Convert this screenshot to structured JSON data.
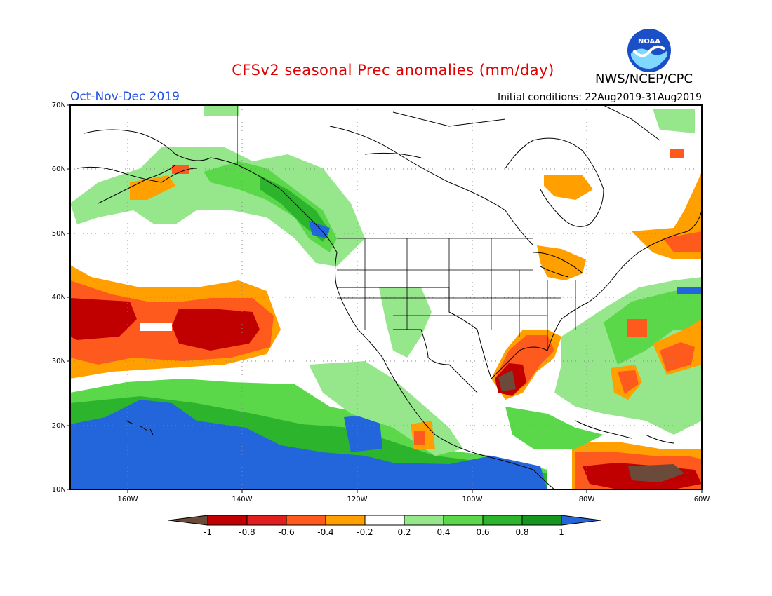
{
  "header": {
    "title": "CFSv2 seasonal Prec anomalies (mm/day)",
    "season": "Oct-Nov-Dec 2019",
    "initial_conditions": "Initial conditions: 22Aug2019-31Aug2019",
    "agency": "NWS/NCEP/CPC",
    "logo_text": "NOAA"
  },
  "map": {
    "lat_labels": [
      "70N",
      "60N",
      "50N",
      "40N",
      "30N",
      "20N",
      "10N"
    ],
    "lon_labels": [
      "160W",
      "140W",
      "120W",
      "100W",
      "80W",
      "60W"
    ]
  },
  "legend": {
    "labels": [
      "-1",
      "-0.8",
      "-0.6",
      "-0.4",
      "-0.2",
      "0.2",
      "0.4",
      "0.6",
      "0.8",
      "1"
    ],
    "colors": [
      "#6b4a3a",
      "#c00000",
      "#e01e1e",
      "#ff5a1e",
      "#ffa000",
      "#ffffff",
      "#96e68c",
      "#5ad84a",
      "#2db42d",
      "#15961e",
      "#2366dc"
    ]
  }
}
